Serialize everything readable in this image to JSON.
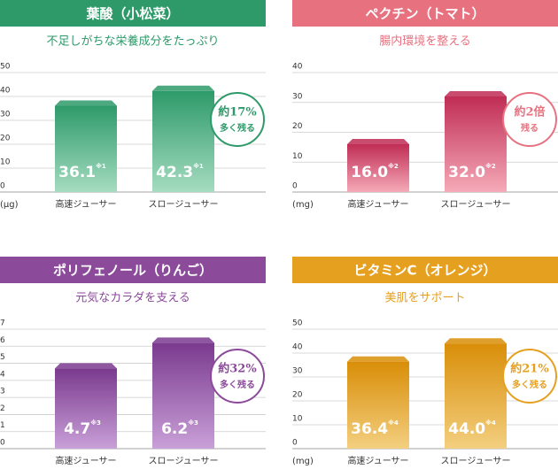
{
  "chart_data": [
    {
      "type": "bar",
      "title": "葉酸（小松菜）",
      "subtitle": "不足しがちな栄養成分をたっぷり",
      "unit": "(μg)",
      "categories": [
        "高速ジューサー",
        "スロージューサー"
      ],
      "values": [
        36.1,
        42.3
      ],
      "value_labels": [
        "36.1",
        "42.3"
      ],
      "notes": [
        "※1",
        "※1"
      ],
      "color": "#2e9a6a",
      "color_light": "#a5dcc0",
      "ylim": [
        0,
        50
      ],
      "yticks": [
        0,
        10,
        20,
        30,
        40,
        50
      ],
      "badge": [
        "約17%",
        "多く残る"
      ],
      "grid": true
    },
    {
      "type": "bar",
      "title": "ペクチン（トマト）",
      "subtitle": "腸内環境を整える",
      "unit": "(mg)",
      "categories": [
        "高速ジューサー",
        "スロージューサー"
      ],
      "values": [
        16.0,
        32.0
      ],
      "value_labels": [
        "16.0",
        "32.0"
      ],
      "notes": [
        "※2",
        "※2"
      ],
      "color": "#c02d55",
      "color_light": "#f5aab8",
      "header_color": "#e8717f",
      "ylim": [
        0,
        40
      ],
      "yticks": [
        0,
        10,
        20,
        30,
        40
      ],
      "badge": [
        "約2倍",
        "残る"
      ],
      "grid": true
    },
    {
      "type": "bar",
      "title": "ポリフェノール（りんご）",
      "subtitle": "元気なカラダを支える",
      "unit": "",
      "categories": [
        "高速ジューサー",
        "スロージューサー"
      ],
      "values": [
        4.7,
        6.2
      ],
      "value_labels": [
        "4.7",
        "6.2"
      ],
      "notes": [
        "※3",
        "※3"
      ],
      "color": "#7a3a8e",
      "color_light": "#c9a0d8",
      "header_color": "#8b4a9a",
      "ylim": [
        0,
        7
      ],
      "yticks": [
        0,
        1,
        2,
        3,
        4,
        5,
        6,
        7
      ],
      "badge": [
        "約32%",
        "多く残る"
      ],
      "grid": true
    },
    {
      "type": "bar",
      "title": "ビタミンC（オレンジ）",
      "subtitle": "美肌をサポート",
      "unit": "(mg)",
      "categories": [
        "高速ジューサー",
        "スロージューサー"
      ],
      "values": [
        36.4,
        44.0
      ],
      "value_labels": [
        "36.4",
        "44.0"
      ],
      "notes": [
        "※4",
        "※4"
      ],
      "color": "#d98e08",
      "color_light": "#f3cf80",
      "header_color": "#e6a020",
      "ylim": [
        0,
        50
      ],
      "yticks": [
        0,
        10,
        20,
        30,
        40,
        50
      ],
      "badge": [
        "約21%",
        "多く残る"
      ],
      "grid": true
    }
  ]
}
